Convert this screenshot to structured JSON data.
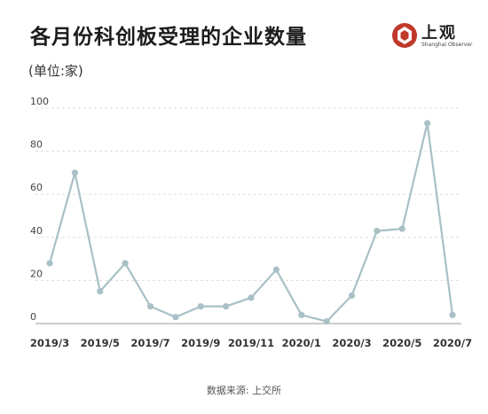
{
  "header": {
    "title": "各月份科创板受理的企业数量",
    "unit": "(单位:家)",
    "logo_text": "上观",
    "logo_sub": "Shanghai Observer"
  },
  "footer": {
    "source": "数据来源: 上交所"
  },
  "colors": {
    "line": "#a8c0c6",
    "point": "#a8c0c6",
    "grid": "#dddddd",
    "axis": "#999999",
    "logo_red": "#c0392b"
  },
  "chart_data": {
    "type": "line",
    "x": [
      "2019/3",
      "2019/4",
      "2019/5",
      "2019/6",
      "2019/7",
      "2019/8",
      "2019/9",
      "2019/10",
      "2019/11",
      "2019/12",
      "2020/1",
      "2020/2",
      "2020/3",
      "2020/4",
      "2020/5",
      "2020/6",
      "2020/7"
    ],
    "tick_labels": [
      "2019/3",
      "2019/5",
      "2019/7",
      "2019/9",
      "2019/11",
      "2020/1",
      "2020/3",
      "2020/5",
      "2020/7"
    ],
    "series": [
      {
        "values": [
          28,
          70,
          15,
          28,
          8,
          3,
          8,
          8,
          12,
          25,
          4,
          1,
          13,
          43,
          44,
          93,
          4
        ]
      }
    ],
    "ylim": [
      0,
      100
    ],
    "yticks": [
      0,
      20,
      40,
      60,
      80,
      100
    ],
    "grid": true,
    "title": "各月份科创板受理的企业数量",
    "ylabel": "(单位:家)"
  }
}
